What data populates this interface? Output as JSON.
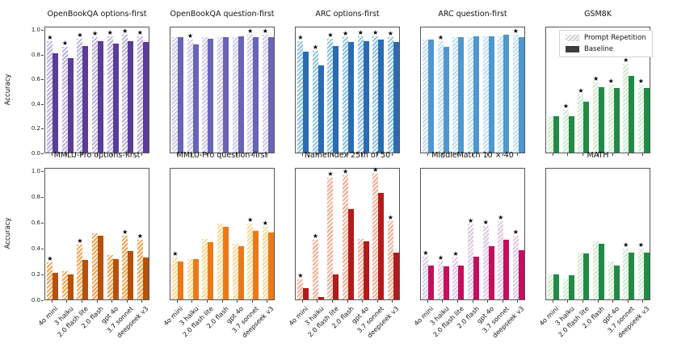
{
  "figure": {
    "ylabel": "Accuracy",
    "yticks": [
      "0.0",
      "0.2",
      "0.4",
      "0.6",
      "0.8",
      "1.0"
    ],
    "star_marker": "★",
    "background": "#ffffff"
  },
  "legend": {
    "items": [
      {
        "label": "Prompt Repetition",
        "swatch": "hatched"
      },
      {
        "label": "Baseline",
        "swatch": "solid"
      }
    ]
  },
  "models": [
    "4o mini",
    "3 haiku",
    "2.0 flash lite",
    "2.0 flash",
    "gpt 4o",
    "3.7 sonnet",
    "deepseek v3"
  ],
  "chart_data": [
    {
      "type": "bar",
      "title": "OpenBookQA options-first",
      "ylim": [
        0,
        1.03
      ],
      "colors": {
        "solid": "#5B3C99",
        "hatch": "#BAB1DB"
      },
      "series": [
        {
          "name": "Prompt Repetition",
          "values": [
            0.92,
            0.87,
            0.94,
            0.95,
            0.96,
            0.97,
            0.96
          ]
        },
        {
          "name": "Baseline",
          "values": [
            0.82,
            0.78,
            0.88,
            0.92,
            0.9,
            0.92,
            0.91
          ]
        }
      ],
      "stars": [
        1,
        1,
        1,
        1,
        1,
        1,
        1
      ]
    },
    {
      "type": "bar",
      "title": "OpenBookQA question-first",
      "ylim": [
        0,
        1.03
      ],
      "colors": {
        "solid": "#6A63B6",
        "hatch": "#CDC9E6"
      },
      "series": [
        {
          "name": "Prompt Repetition",
          "values": [
            0.95,
            0.93,
            0.95,
            0.95,
            0.95,
            0.97,
            0.97
          ]
        },
        {
          "name": "Baseline",
          "values": [
            0.95,
            0.89,
            0.94,
            0.95,
            0.96,
            0.95,
            0.95
          ]
        }
      ],
      "stars": [
        0,
        1,
        0,
        0,
        0,
        1,
        1
      ]
    },
    {
      "type": "bar",
      "title": "ARC options-first",
      "ylim": [
        0,
        1.03
      ],
      "colors": {
        "solid": "#2B6CB1",
        "hatch": "#89C0E5"
      },
      "series": [
        {
          "name": "Prompt Repetition",
          "values": [
            0.92,
            0.84,
            0.94,
            0.95,
            0.96,
            0.96,
            0.95
          ]
        },
        {
          "name": "Baseline",
          "values": [
            0.83,
            0.72,
            0.88,
            0.91,
            0.92,
            0.93,
            0.91
          ]
        }
      ],
      "stars": [
        1,
        1,
        1,
        1,
        1,
        1,
        1
      ]
    },
    {
      "type": "bar",
      "title": "ARC question-first",
      "ylim": [
        0,
        1.03
      ],
      "colors": {
        "solid": "#4F97CD",
        "hatch": "#BDDCF0"
      },
      "series": [
        {
          "name": "Prompt Repetition",
          "values": [
            0.93,
            0.92,
            0.95,
            0.95,
            0.96,
            0.96,
            0.97
          ]
        },
        {
          "name": "Baseline",
          "values": [
            0.93,
            0.87,
            0.95,
            0.96,
            0.96,
            0.97,
            0.95
          ]
        }
      ],
      "stars": [
        0,
        1,
        0,
        0,
        0,
        0,
        1
      ]
    },
    {
      "type": "bar",
      "title": "GSM8K",
      "ylim": [
        0,
        1.03
      ],
      "colors": {
        "solid": "#208B45",
        "hatch": "#CDEACB"
      },
      "series": [
        {
          "name": "Prompt Repetition",
          "values": [
            0.3,
            0.35,
            0.48,
            0.58,
            0.56,
            0.73,
            0.56
          ]
        },
        {
          "name": "Baseline",
          "values": [
            0.3,
            0.3,
            0.42,
            0.54,
            0.53,
            0.63,
            0.53
          ]
        }
      ],
      "stars": [
        0,
        1,
        1,
        1,
        1,
        1,
        1
      ]
    },
    {
      "type": "bar",
      "title": "MMLU-Pro options-first",
      "ylim": [
        0,
        1.03
      ],
      "colors": {
        "solid": "#B5510C",
        "hatch": "#F6A04B"
      },
      "series": [
        {
          "name": "Prompt Repetition",
          "values": [
            0.29,
            0.22,
            0.43,
            0.52,
            0.35,
            0.5,
            0.47
          ]
        },
        {
          "name": "Baseline",
          "values": [
            0.21,
            0.2,
            0.31,
            0.5,
            0.32,
            0.38,
            0.33
          ]
        }
      ],
      "stars": [
        1,
        0,
        1,
        0,
        0,
        1,
        1
      ]
    },
    {
      "type": "bar",
      "title": "MMLU-Pro question-first",
      "ylim": [
        0,
        1.03
      ],
      "colors": {
        "solid": "#EA7A18",
        "hatch": "#FBD68F"
      },
      "series": [
        {
          "name": "Prompt Repetition",
          "values": [
            0.33,
            0.32,
            0.48,
            0.6,
            0.44,
            0.6,
            0.57
          ]
        },
        {
          "name": "Baseline",
          "values": [
            0.3,
            0.32,
            0.45,
            0.57,
            0.42,
            0.54,
            0.53
          ]
        }
      ],
      "stars": [
        1,
        0,
        0,
        0,
        0,
        1,
        1
      ]
    },
    {
      "type": "bar",
      "title": "NameIndex 25th of 50",
      "ylim": [
        0,
        1.03
      ],
      "colors": {
        "solid": "#B31B1B",
        "hatch": "#F7AB91"
      },
      "series": [
        {
          "name": "Prompt Repetition",
          "values": [
            0.16,
            0.47,
            0.96,
            0.98,
            0.48,
            0.99,
            0.62
          ]
        },
        {
          "name": "Baseline",
          "values": [
            0.09,
            0.02,
            0.2,
            0.71,
            0.46,
            0.84,
            0.37
          ]
        }
      ],
      "stars": [
        1,
        1,
        1,
        1,
        0,
        1,
        1
      ]
    },
    {
      "type": "bar",
      "title": "MiddleMatch 10 × 40",
      "ylim": [
        0,
        1.03
      ],
      "colors": {
        "solid": "#C40E5E",
        "hatch": "#DDC6E2"
      },
      "series": [
        {
          "name": "Prompt Repetition",
          "values": [
            0.34,
            0.3,
            0.33,
            0.59,
            0.58,
            0.62,
            0.5
          ]
        },
        {
          "name": "Baseline",
          "values": [
            0.27,
            0.26,
            0.27,
            0.34,
            0.42,
            0.47,
            0.39
          ]
        }
      ],
      "stars": [
        1,
        1,
        1,
        1,
        1,
        1,
        1
      ]
    },
    {
      "type": "bar",
      "title": "MATH",
      "ylim": [
        0,
        1.03
      ],
      "colors": {
        "solid": "#208B45",
        "hatch": "#CDEACB"
      },
      "series": [
        {
          "name": "Prompt Repetition",
          "values": [
            0.2,
            0.16,
            0.37,
            0.46,
            0.3,
            0.4,
            0.4
          ]
        },
        {
          "name": "Baseline",
          "values": [
            0.2,
            0.19,
            0.36,
            0.44,
            0.27,
            0.37,
            0.37
          ]
        }
      ],
      "stars": [
        0,
        0,
        0,
        0,
        0,
        1,
        1
      ]
    }
  ]
}
